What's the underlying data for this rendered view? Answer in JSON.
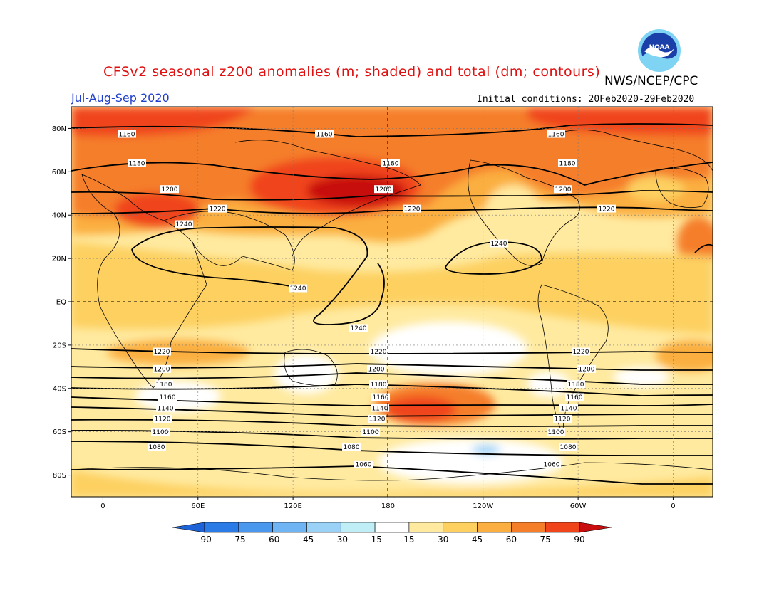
{
  "title": "CFSv2 seasonal z200 anomalies (m; shaded) and total (dm; contours)",
  "agency": "NWS/NCEP/CPC",
  "season": "Jul-Aug-Sep 2020",
  "initial_conditions": "Initial conditions: 20Feb2020-29Feb2020",
  "logo_text": "NOAA",
  "lat_labels": [
    {
      "lat": 80,
      "text": "80N"
    },
    {
      "lat": 60,
      "text": "60N"
    },
    {
      "lat": 40,
      "text": "40N"
    },
    {
      "lat": 20,
      "text": "20N"
    },
    {
      "lat": 0,
      "text": "EQ"
    },
    {
      "lat": -20,
      "text": "20S"
    },
    {
      "lat": -40,
      "text": "40S"
    },
    {
      "lat": -60,
      "text": "60S"
    },
    {
      "lat": -80,
      "text": "80S"
    }
  ],
  "lon_labels": [
    {
      "lon": 0,
      "text": "0"
    },
    {
      "lon": 60,
      "text": "60E"
    },
    {
      "lon": 120,
      "text": "120E"
    },
    {
      "lon": 180,
      "text": "180"
    },
    {
      "lon": 240,
      "text": "120W"
    },
    {
      "lon": 300,
      "text": "60W"
    },
    {
      "lon": 360,
      "text": "0"
    }
  ],
  "colorbar": {
    "ticks": [
      "-90",
      "-75",
      "-60",
      "-45",
      "-30",
      "-15",
      "15",
      "30",
      "45",
      "60",
      "75",
      "90"
    ],
    "colors": [
      "#1e62d8",
      "#2a7be6",
      "#4a97ee",
      "#6fb5f4",
      "#9ad2f7",
      "#bfeef6",
      "#ffffff",
      "#ffeaa0",
      "#fdd060",
      "#fbaf40",
      "#f57e2a",
      "#f0451a",
      "#c80e0e"
    ]
  },
  "contours": [
    {
      "label": "1160",
      "lat": 77.5
    },
    {
      "label": "1180",
      "lat": 64
    },
    {
      "label": "1200",
      "lat": 52
    },
    {
      "label": "1220",
      "lat": 43
    },
    {
      "label": "1240",
      "lat": 15
    },
    {
      "label": "1220",
      "lat": -23
    },
    {
      "label": "1200",
      "lat": -31
    },
    {
      "label": "1180",
      "lat": -38
    },
    {
      "label": "1160",
      "lat": -44
    },
    {
      "label": "1140",
      "lat": -49
    },
    {
      "label": "1120",
      "lat": -54
    },
    {
      "label": "1100",
      "lat": -60
    },
    {
      "label": "1080",
      "lat": -67
    },
    {
      "label": "1060",
      "lat": -75
    }
  ]
}
